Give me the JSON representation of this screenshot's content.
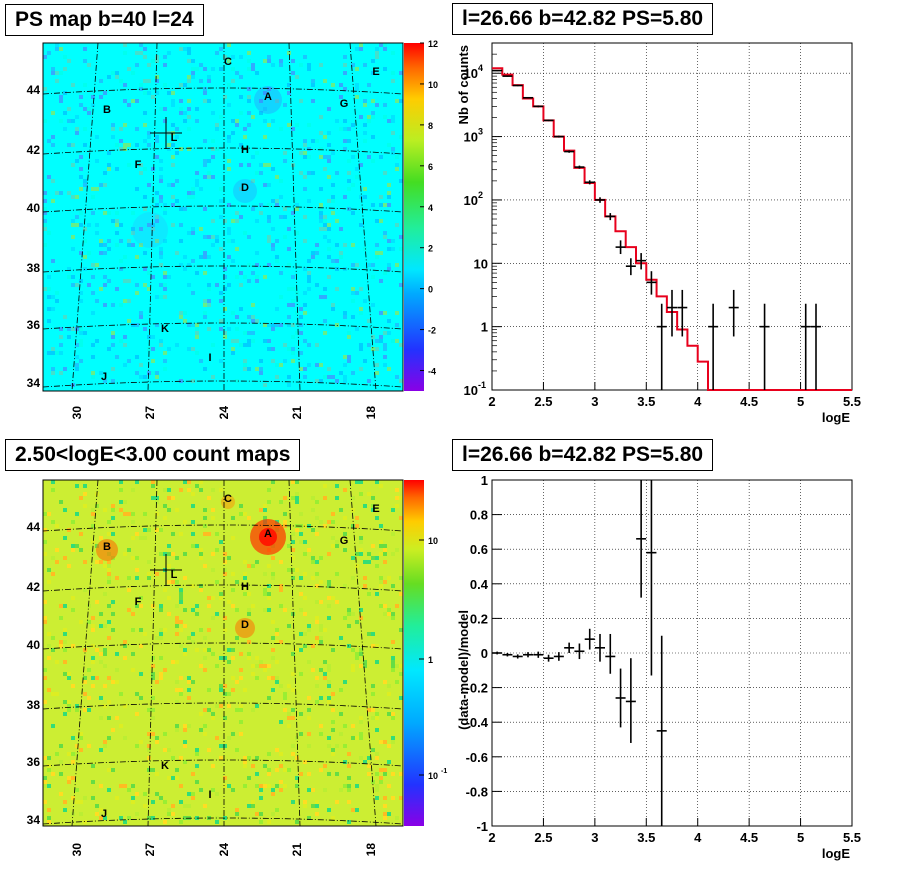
{
  "titles": {
    "ps_map": "PS map b=40 l=24",
    "spectrum": "l=26.66 b=42.82 PS=5.80",
    "count_map": "2.50<logE<3.00 count maps",
    "residual": "l=26.66 b=42.82 PS=5.80"
  },
  "maps": {
    "lat_ticks": [
      "44",
      "42",
      "40",
      "38",
      "36",
      "34"
    ],
    "lon_ticks": [
      "30",
      "27",
      "24",
      "21",
      "18"
    ],
    "sources": [
      {
        "name": "A"
      },
      {
        "name": "B"
      },
      {
        "name": "C"
      },
      {
        "name": "D"
      },
      {
        "name": "E"
      },
      {
        "name": "F"
      },
      {
        "name": "G"
      },
      {
        "name": "H"
      },
      {
        "name": "I"
      },
      {
        "name": "J"
      },
      {
        "name": "K"
      },
      {
        "name": "L"
      }
    ],
    "ps_colorbar_labels": [
      "12",
      "10",
      "8",
      "6",
      "4",
      "2",
      "0",
      "-2",
      "-4"
    ],
    "count_colorbar_labels": [
      "10",
      "1",
      "10",
      "-1"
    ],
    "colors": {
      "ps_background": "#00ffff",
      "count_background": "#ccee33",
      "hotspot": "#ff3300"
    }
  },
  "chart_data": [
    {
      "type": "line",
      "panel": "spectrum",
      "xlabel": "logE",
      "ylabel": "Nb of counts",
      "xlim": [
        2,
        5.5
      ],
      "ylim": [
        0.1,
        30000
      ],
      "y_scale": "log",
      "grid": true,
      "x_ticks": [
        "2",
        "2.5",
        "3",
        "3.5",
        "4",
        "4.5",
        "5",
        "5.5"
      ],
      "y_ticks": [
        {
          "base": "10",
          "exp": "4"
        },
        {
          "base": "10",
          "exp": "3"
        },
        {
          "base": "10",
          "exp": "2"
        },
        {
          "base": "10",
          "exp": ""
        },
        {
          "base": "1",
          "exp": ""
        },
        {
          "base": "10",
          "exp": "-1"
        }
      ],
      "model_color": "#e8001c",
      "model_steps": [
        [
          2.0,
          2.1,
          12000
        ],
        [
          2.1,
          2.2,
          9500
        ],
        [
          2.2,
          2.3,
          6500
        ],
        [
          2.3,
          2.4,
          4000
        ],
        [
          2.4,
          2.5,
          3000
        ],
        [
          2.5,
          2.6,
          1800
        ],
        [
          2.6,
          2.7,
          1000
        ],
        [
          2.7,
          2.8,
          600
        ],
        [
          2.8,
          2.9,
          320
        ],
        [
          2.9,
          3.0,
          185
        ],
        [
          3.0,
          3.1,
          100
        ],
        [
          3.1,
          3.2,
          55
        ],
        [
          3.2,
          3.3,
          32
        ],
        [
          3.3,
          3.4,
          18
        ],
        [
          3.4,
          3.5,
          10
        ],
        [
          3.5,
          3.6,
          5.5
        ],
        [
          3.6,
          3.7,
          3.0
        ],
        [
          3.7,
          3.8,
          1.7
        ],
        [
          3.8,
          3.9,
          0.9
        ],
        [
          3.9,
          4.0,
          0.5
        ],
        [
          4.0,
          4.1,
          0.28
        ],
        [
          4.1,
          5.5,
          0.1
        ]
      ],
      "points": [
        {
          "x": 2.05,
          "y": 11000,
          "lo": 10800,
          "hi": 11200
        },
        {
          "x": 2.15,
          "y": 9000,
          "lo": 8800,
          "hi": 9200
        },
        {
          "x": 2.25,
          "y": 6400,
          "lo": 6250,
          "hi": 6550
        },
        {
          "x": 2.35,
          "y": 4100,
          "lo": 4000,
          "hi": 4200
        },
        {
          "x": 2.45,
          "y": 3000,
          "lo": 2900,
          "hi": 3100
        },
        {
          "x": 2.55,
          "y": 1800,
          "lo": 1750,
          "hi": 1850
        },
        {
          "x": 2.65,
          "y": 1000,
          "lo": 965,
          "hi": 1035
        },
        {
          "x": 2.75,
          "y": 580,
          "lo": 555,
          "hi": 605
        },
        {
          "x": 2.85,
          "y": 330,
          "lo": 312,
          "hi": 348
        },
        {
          "x": 2.95,
          "y": 190,
          "lo": 176,
          "hi": 204
        },
        {
          "x": 3.05,
          "y": 100,
          "lo": 90,
          "hi": 110
        },
        {
          "x": 3.15,
          "y": 55,
          "lo": 48,
          "hi": 62
        },
        {
          "x": 3.25,
          "y": 18,
          "lo": 14,
          "hi": 23
        },
        {
          "x": 3.35,
          "y": 9,
          "lo": 6.5,
          "hi": 12
        },
        {
          "x": 3.45,
          "y": 11,
          "lo": 8,
          "hi": 14.5
        },
        {
          "x": 3.55,
          "y": 5,
          "lo": 3.2,
          "hi": 7.5
        },
        {
          "x": 3.65,
          "y": 1,
          "lo": 0.1,
          "hi": 2.3
        },
        {
          "x": 3.75,
          "y": 2,
          "lo": 0.7,
          "hi": 3.8
        },
        {
          "x": 3.85,
          "y": 2,
          "lo": 0.7,
          "hi": 3.8
        },
        {
          "x": 4.15,
          "y": 1,
          "lo": 0.1,
          "hi": 2.3
        },
        {
          "x": 4.35,
          "y": 2,
          "lo": 0.7,
          "hi": 3.8
        },
        {
          "x": 4.65,
          "y": 1,
          "lo": 0.1,
          "hi": 2.3
        },
        {
          "x": 5.05,
          "y": 1,
          "lo": 0.1,
          "hi": 2.3
        },
        {
          "x": 5.15,
          "y": 1,
          "lo": 0.1,
          "hi": 2.3
        }
      ]
    },
    {
      "type": "scatter",
      "panel": "residual",
      "xlabel": "logE",
      "ylabel": "(data-model)/model",
      "xlim": [
        2,
        5.5
      ],
      "ylim": [
        -1,
        1
      ],
      "grid": true,
      "x_ticks": [
        "2",
        "2.5",
        "3",
        "3.5",
        "4",
        "4.5",
        "5",
        "5.5"
      ],
      "y_ticks": [
        "1",
        "0.8",
        "0.6",
        "0.4",
        "0.2",
        "0",
        "-0.2",
        "-0.4",
        "-0.6",
        "-0.8",
        "-1"
      ],
      "points": [
        {
          "x": 2.05,
          "y": 0.0,
          "lo": -0.008,
          "hi": 0.008
        },
        {
          "x": 2.15,
          "y": -0.01,
          "lo": -0.02,
          "hi": 0.0
        },
        {
          "x": 2.25,
          "y": -0.02,
          "lo": -0.032,
          "hi": -0.008
        },
        {
          "x": 2.35,
          "y": -0.01,
          "lo": -0.025,
          "hi": 0.005
        },
        {
          "x": 2.45,
          "y": -0.01,
          "lo": -0.028,
          "hi": 0.008
        },
        {
          "x": 2.55,
          "y": -0.03,
          "lo": -0.05,
          "hi": -0.01
        },
        {
          "x": 2.65,
          "y": -0.02,
          "lo": -0.045,
          "hi": 0.005
        },
        {
          "x": 2.75,
          "y": 0.03,
          "lo": 0.0,
          "hi": 0.06
        },
        {
          "x": 2.85,
          "y": 0.01,
          "lo": -0.035,
          "hi": 0.055
        },
        {
          "x": 2.95,
          "y": 0.08,
          "lo": 0.02,
          "hi": 0.14
        },
        {
          "x": 3.05,
          "y": 0.03,
          "lo": -0.05,
          "hi": 0.11
        },
        {
          "x": 3.15,
          "y": -0.02,
          "lo": -0.12,
          "hi": 0.11
        },
        {
          "x": 3.25,
          "y": -0.26,
          "lo": -0.43,
          "hi": -0.09
        },
        {
          "x": 3.35,
          "y": -0.28,
          "lo": -0.52,
          "hi": -0.03
        },
        {
          "x": 3.45,
          "y": 0.66,
          "lo": 0.32,
          "hi": 1.0
        },
        {
          "x": 3.55,
          "y": 0.58,
          "lo": -0.13,
          "hi": 1.0
        },
        {
          "x": 3.65,
          "y": -0.45,
          "lo": -1.0,
          "hi": 0.1
        }
      ]
    }
  ]
}
